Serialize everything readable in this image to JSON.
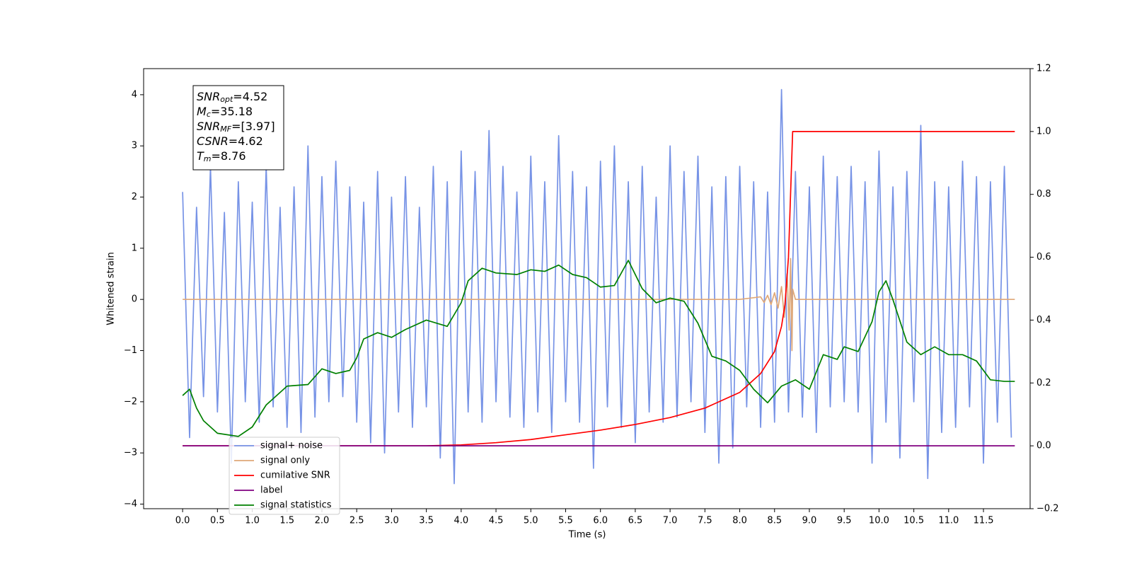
{
  "chart_data": {
    "type": "line",
    "xlabel": "Time (s)",
    "ylabel": "Whitened strain",
    "xlim": [
      -0.56,
      12.17
    ],
    "ylim": [
      -4.09,
      4.51
    ],
    "y2lim": [
      -0.2,
      1.2
    ],
    "xticks": [
      {
        "value": 0,
        "label": "0.0"
      },
      0.5,
      {
        "value": 1,
        "label": "1.0"
      },
      1.5,
      {
        "value": 2,
        "label": "2.0"
      },
      2.5,
      {
        "value": 3,
        "label": "3.0"
      },
      3.5,
      {
        "value": 4,
        "label": "4.0"
      },
      4.5,
      {
        "value": 5,
        "label": "5.0"
      },
      5.5,
      {
        "value": 6,
        "label": "6.0"
      },
      6.5,
      {
        "value": 7,
        "label": "7.0"
      },
      7.5,
      {
        "value": 8,
        "label": "8.0"
      },
      8.5,
      {
        "value": 9,
        "label": "9.0"
      },
      9.5,
      {
        "value": 10,
        "label": "10.0"
      },
      10.5,
      {
        "value": 11,
        "label": "11.0"
      },
      11.5
    ],
    "yticks": [
      {
        "value": -4,
        "label": "−4"
      },
      {
        "value": -3,
        "label": "−3"
      },
      {
        "value": -2,
        "label": "−2"
      },
      {
        "value": -1,
        "label": "−1"
      },
      0,
      1,
      2,
      3,
      4
    ],
    "y2ticks": [
      {
        "value": -0.2,
        "label": "−0.2"
      },
      {
        "value": 0,
        "label": "0.0"
      },
      0.2,
      0.4,
      0.6,
      0.8,
      {
        "value": 1,
        "label": "1.0"
      },
      1.2
    ],
    "legend": "lower left",
    "annotations": [
      {
        "text": "SNR",
        "sub": "opt",
        "value": "=4.52"
      },
      {
        "text": "M",
        "sub": "c",
        "value": "=35.18"
      },
      {
        "text": "SNR",
        "sub": "MF",
        "value": "=[3.97]"
      },
      {
        "text": "CSNR",
        "value": "=4.62"
      },
      {
        "text": "T",
        "sub": "m",
        "value": "=8.76"
      }
    ],
    "series": [
      {
        "name": "signal+ noise",
        "color": "#7793e6",
        "x": [
          0.0,
          0.1,
          0.2,
          0.3,
          0.4,
          0.5,
          0.6,
          0.7,
          0.8,
          0.9,
          1.0,
          1.1,
          1.2,
          1.3,
          1.4,
          1.5,
          1.6,
          1.7,
          1.8,
          1.9,
          2.0,
          2.1,
          2.2,
          2.3,
          2.4,
          2.5,
          2.6,
          2.7,
          2.8,
          2.9,
          3.0,
          3.1,
          3.2,
          3.3,
          3.4,
          3.5,
          3.6,
          3.7,
          3.8,
          3.9,
          4.0,
          4.1,
          4.2,
          4.3,
          4.4,
          4.5,
          4.6,
          4.7,
          4.8,
          4.9,
          5.0,
          5.1,
          5.2,
          5.3,
          5.4,
          5.5,
          5.6,
          5.7,
          5.8,
          5.9,
          6.0,
          6.1,
          6.2,
          6.3,
          6.4,
          6.5,
          6.6,
          6.7,
          6.8,
          6.9,
          7.0,
          7.1,
          7.2,
          7.3,
          7.4,
          7.5,
          7.6,
          7.7,
          7.8,
          7.9,
          8.0,
          8.1,
          8.2,
          8.3,
          8.4,
          8.5,
          8.6,
          8.7,
          8.8,
          8.9,
          9.0,
          9.1,
          9.2,
          9.3,
          9.4,
          9.5,
          9.6,
          9.7,
          9.8,
          9.9,
          10.0,
          10.1,
          10.2,
          10.3,
          10.4,
          10.5,
          10.6,
          10.7,
          10.8,
          10.9,
          11.0,
          11.1,
          11.2,
          11.3,
          11.4,
          11.5,
          11.6,
          11.7,
          11.8,
          11.9
        ],
        "values": [
          2.1,
          -2.7,
          1.8,
          -1.9,
          2.6,
          -2.2,
          1.7,
          -3.2,
          2.3,
          -2.0,
          1.9,
          -2.4,
          2.6,
          -2.1,
          1.8,
          -2.5,
          2.2,
          -2.6,
          3.0,
          -2.3,
          2.4,
          -2.0,
          2.7,
          -1.9,
          2.2,
          -2.4,
          1.9,
          -2.8,
          2.5,
          -3.0,
          2.0,
          -2.2,
          2.4,
          -2.5,
          1.8,
          -2.1,
          2.6,
          -3.1,
          2.3,
          -3.6,
          2.9,
          -2.2,
          2.5,
          -2.4,
          3.3,
          -2.0,
          2.6,
          -2.3,
          2.1,
          -2.5,
          2.8,
          -2.2,
          2.3,
          -2.6,
          3.2,
          -2.0,
          2.5,
          -2.4,
          2.2,
          -3.3,
          2.7,
          -2.1,
          3.0,
          -2.5,
          2.3,
          -2.8,
          2.6,
          -2.2,
          2.0,
          -2.4,
          3.0,
          -2.3,
          2.5,
          -2.0,
          2.8,
          -2.6,
          2.2,
          -3.2,
          2.4,
          -2.9,
          2.6,
          -2.1,
          2.3,
          -2.5,
          2.1,
          -2.4,
          4.1,
          -2.2,
          2.5,
          -2.3,
          2.2,
          -2.6,
          2.8,
          -2.1,
          2.4,
          -2.0,
          2.6,
          -2.2,
          2.3,
          -3.2,
          2.9,
          -2.4,
          2.2,
          -3.1,
          2.5,
          -2.0,
          3.4,
          -3.5,
          2.3,
          -2.6,
          2.2,
          -2.5,
          2.7,
          -2.1,
          2.4,
          -3.2,
          2.3,
          -2.4,
          2.6,
          -2.7
        ]
      },
      {
        "name": "signal only",
        "color": "#dfa878",
        "x": [
          0,
          8.0,
          8.3,
          8.35,
          8.4,
          8.45,
          8.5,
          8.55,
          8.6,
          8.64,
          8.68,
          8.71,
          8.73,
          8.75,
          8.76,
          8.8,
          11.95
        ],
        "values": [
          0,
          0,
          0.05,
          -0.06,
          0.08,
          -0.1,
          0.13,
          -0.17,
          0.25,
          -0.35,
          0.5,
          -0.6,
          0.8,
          -1.0,
          0.2,
          0,
          0
        ]
      },
      {
        "name": "cumilative SNR",
        "color": "#ff0000",
        "axis": "y2",
        "x": [
          0,
          3.5,
          4.0,
          4.5,
          5.0,
          5.5,
          6.0,
          6.5,
          7.0,
          7.5,
          8.0,
          8.3,
          8.5,
          8.6,
          8.65,
          8.7,
          8.73,
          8.76,
          11.95
        ],
        "values": [
          0,
          0,
          0.003,
          0.01,
          0.02,
          0.035,
          0.05,
          0.068,
          0.09,
          0.12,
          0.17,
          0.23,
          0.3,
          0.38,
          0.45,
          0.6,
          0.8,
          1.0,
          1.0
        ]
      },
      {
        "name": "label",
        "color": "#800080",
        "axis": "y2",
        "x": [
          0,
          11.95
        ],
        "values": [
          0,
          0
        ]
      },
      {
        "name": "signal statistics",
        "color": "#008000",
        "axis": "y2",
        "x": [
          0,
          0.1,
          0.2,
          0.3,
          0.5,
          0.8,
          1.0,
          1.2,
          1.5,
          1.8,
          2.0,
          2.2,
          2.4,
          2.5,
          2.6,
          2.8,
          3.0,
          3.2,
          3.5,
          3.8,
          4.0,
          4.1,
          4.3,
          4.5,
          4.8,
          5.0,
          5.2,
          5.4,
          5.6,
          5.8,
          6.0,
          6.2,
          6.4,
          6.6,
          6.8,
          7.0,
          7.2,
          7.4,
          7.6,
          7.8,
          8.0,
          8.2,
          8.4,
          8.6,
          8.8,
          9.0,
          9.2,
          9.4,
          9.5,
          9.7,
          9.9,
          10.0,
          10.1,
          10.2,
          10.4,
          10.6,
          10.8,
          11.0,
          11.2,
          11.4,
          11.6,
          11.8,
          11.95
        ],
        "values": [
          0.16,
          0.18,
          0.12,
          0.08,
          0.04,
          0.03,
          0.06,
          0.13,
          0.19,
          0.195,
          0.245,
          0.23,
          0.24,
          0.28,
          0.34,
          0.36,
          0.345,
          0.37,
          0.4,
          0.38,
          0.455,
          0.525,
          0.565,
          0.55,
          0.545,
          0.56,
          0.555,
          0.575,
          0.545,
          0.535,
          0.505,
          0.51,
          0.59,
          0.5,
          0.455,
          0.47,
          0.46,
          0.39,
          0.285,
          0.27,
          0.24,
          0.18,
          0.137,
          0.19,
          0.21,
          0.18,
          0.29,
          0.275,
          0.315,
          0.3,
          0.395,
          0.49,
          0.525,
          0.465,
          0.33,
          0.29,
          0.315,
          0.29,
          0.29,
          0.27,
          0.21,
          0.205,
          0.205
        ]
      }
    ]
  }
}
